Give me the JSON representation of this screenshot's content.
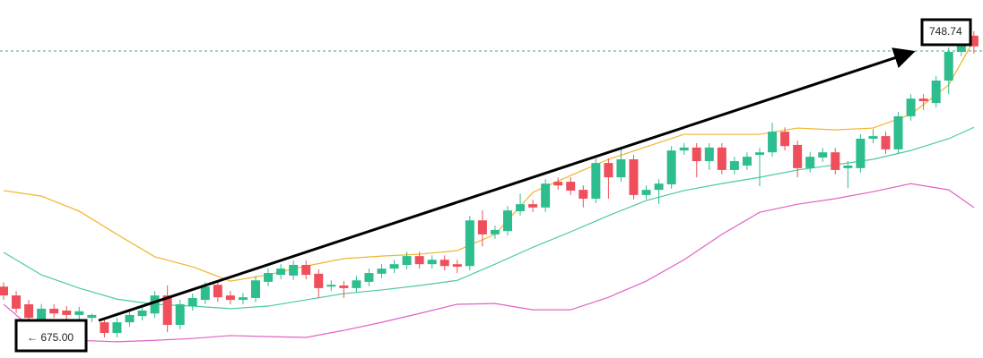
{
  "chart_data": {
    "type": "candlestick",
    "ylim": [
      665.3,
      762.6
    ],
    "up_color": "#2dbd8f",
    "down_color": "#ef4f5a",
    "candles": [
      [
        684.7,
        685.9,
        681.1,
        682.3
      ],
      [
        682.3,
        683.5,
        677.5,
        678.7
      ],
      [
        679.9,
        681.1,
        675.0,
        676.2
      ],
      [
        675.7,
        680.0,
        674.5,
        678.7
      ],
      [
        678.7,
        679.9,
        676.2,
        677.4
      ],
      [
        678.2,
        679.4,
        675.8,
        677.0
      ],
      [
        677.0,
        679.2,
        675.8,
        678.0
      ],
      [
        676.2,
        677.4,
        675.0,
        677.0
      ],
      [
        675.0,
        676.2,
        670.9,
        672.1
      ],
      [
        672.1,
        676.2,
        670.9,
        675.0
      ],
      [
        675.0,
        678.2,
        673.8,
        677.0
      ],
      [
        676.7,
        679.4,
        675.5,
        678.2
      ],
      [
        677.4,
        683.5,
        676.2,
        682.3
      ],
      [
        682.3,
        685.0,
        672.3,
        674.3
      ],
      [
        674.3,
        681.1,
        673.1,
        679.9
      ],
      [
        679.4,
        682.8,
        678.2,
        681.6
      ],
      [
        681.1,
        685.9,
        679.9,
        684.7
      ],
      [
        685.2,
        686.4,
        680.6,
        681.8
      ],
      [
        682.3,
        683.5,
        679.9,
        681.1
      ],
      [
        681.1,
        683.0,
        679.9,
        681.8
      ],
      [
        681.6,
        687.6,
        680.4,
        686.4
      ],
      [
        686.0,
        689.6,
        684.8,
        688.4
      ],
      [
        687.9,
        690.8,
        686.7,
        689.6
      ],
      [
        687.7,
        691.8,
        686.5,
        690.6
      ],
      [
        690.6,
        691.8,
        686.7,
        687.9
      ],
      [
        688.2,
        689.4,
        681.6,
        684.3
      ],
      [
        684.7,
        686.4,
        683.5,
        685.2
      ],
      [
        685.0,
        686.2,
        681.6,
        684.3
      ],
      [
        684.3,
        687.6,
        683.1,
        686.4
      ],
      [
        686.0,
        689.6,
        684.8,
        688.4
      ],
      [
        688.2,
        690.8,
        687.0,
        689.6
      ],
      [
        689.6,
        692.0,
        688.4,
        690.8
      ],
      [
        690.6,
        694.2,
        689.4,
        693.0
      ],
      [
        693.0,
        694.2,
        689.6,
        690.8
      ],
      [
        690.8,
        693.2,
        689.6,
        692.0
      ],
      [
        692.0,
        693.2,
        689.1,
        690.3
      ],
      [
        690.8,
        692.0,
        688.4,
        690.1
      ],
      [
        690.3,
        703.9,
        689.1,
        702.7
      ],
      [
        702.7,
        705.4,
        695.6,
        698.9
      ],
      [
        698.9,
        701.3,
        697.7,
        700.1
      ],
      [
        699.8,
        706.6,
        698.6,
        705.4
      ],
      [
        705.2,
        710.0,
        704.0,
        707.1
      ],
      [
        707.1,
        708.3,
        705.0,
        706.2
      ],
      [
        706.2,
        713.9,
        705.0,
        712.7
      ],
      [
        713.2,
        714.4,
        711.0,
        712.2
      ],
      [
        713.2,
        714.4,
        709.6,
        710.8
      ],
      [
        711.0,
        712.2,
        706.2,
        708.6
      ],
      [
        708.6,
        719.5,
        707.4,
        718.3
      ],
      [
        718.3,
        719.5,
        708.6,
        714.4
      ],
      [
        714.4,
        722.5,
        713.2,
        719.3
      ],
      [
        719.3,
        720.5,
        708.4,
        709.6
      ],
      [
        709.6,
        712.2,
        708.4,
        711.0
      ],
      [
        711.0,
        713.9,
        707.1,
        712.7
      ],
      [
        712.5,
        722.9,
        711.3,
        721.7
      ],
      [
        721.7,
        723.7,
        720.5,
        722.5
      ],
      [
        722.5,
        723.7,
        714.4,
        718.8
      ],
      [
        718.8,
        723.7,
        716.4,
        722.5
      ],
      [
        722.5,
        723.7,
        715.2,
        716.4
      ],
      [
        716.4,
        720.0,
        715.2,
        718.8
      ],
      [
        717.6,
        721.2,
        716.4,
        720.0
      ],
      [
        720.5,
        722.4,
        712.0,
        721.2
      ],
      [
        721.2,
        729.2,
        720.0,
        726.8
      ],
      [
        726.8,
        728.0,
        721.7,
        722.9
      ],
      [
        723.2,
        724.4,
        714.4,
        716.9
      ],
      [
        716.9,
        721.2,
        715.7,
        720.0
      ],
      [
        719.8,
        722.4,
        718.6,
        721.2
      ],
      [
        721.2,
        722.4,
        715.2,
        716.4
      ],
      [
        716.9,
        718.8,
        711.5,
        717.6
      ],
      [
        716.9,
        726.1,
        715.7,
        724.9
      ],
      [
        724.9,
        727.5,
        723.7,
        725.6
      ],
      [
        725.6,
        726.8,
        720.8,
        722.0
      ],
      [
        722.0,
        732.2,
        720.8,
        731.0
      ],
      [
        731.0,
        737.0,
        729.8,
        735.8
      ],
      [
        735.8,
        737.0,
        732.7,
        735.1
      ],
      [
        734.6,
        741.9,
        733.4,
        740.7
      ],
      [
        740.7,
        749.7,
        737.0,
        748.5
      ],
      [
        748.5,
        754.1,
        747.3,
        752.9
      ],
      [
        752.9,
        754.1,
        748.0,
        750.0
      ]
    ],
    "lines": [
      {
        "color": "#f0b429",
        "x": [
          0,
          3,
          6,
          9,
          12,
          15,
          18,
          21,
          24,
          27,
          30,
          33,
          36,
          39,
          42,
          45,
          48,
          51,
          54,
          57,
          60,
          63,
          66,
          69,
          72,
          75,
          77
        ],
        "values": [
          710.8,
          709.3,
          705.2,
          698.9,
          692.8,
          690.1,
          686.2,
          687.9,
          690.3,
          692.3,
          693.0,
          693.5,
          694.5,
          698.9,
          710.3,
          714.9,
          719.3,
          722.7,
          726.1,
          726.1,
          726.1,
          727.8,
          727.3,
          727.8,
          731.5,
          739.5,
          751.7
        ]
      },
      {
        "color": "#4cc9a4",
        "x": [
          0,
          3,
          6,
          9,
          12,
          15,
          18,
          21,
          24,
          27,
          30,
          33,
          36,
          39,
          42,
          45,
          48,
          51,
          54,
          57,
          60,
          63,
          66,
          69,
          72,
          75,
          77
        ],
        "values": [
          694.0,
          687.9,
          684.3,
          681.3,
          679.9,
          679.4,
          678.7,
          679.4,
          681.1,
          682.8,
          683.8,
          685.0,
          686.4,
          690.8,
          695.4,
          699.6,
          704.0,
          708.1,
          710.8,
          712.7,
          714.4,
          716.4,
          717.8,
          719.3,
          721.7,
          724.9,
          728.0
        ]
      },
      {
        "color": "#e062c4",
        "x": [
          0,
          3,
          6,
          9,
          12,
          15,
          18,
          21,
          24,
          27,
          30,
          33,
          36,
          39,
          42,
          45,
          48,
          51,
          54,
          57,
          60,
          63,
          66,
          69,
          72,
          75,
          77
        ],
        "values": [
          679.9,
          671.1,
          670.1,
          669.7,
          670.1,
          670.6,
          671.4,
          671.1,
          670.9,
          672.8,
          675.0,
          677.4,
          679.9,
          680.1,
          678.4,
          678.4,
          681.8,
          686.2,
          692.0,
          698.9,
          704.9,
          707.1,
          708.6,
          710.5,
          712.7,
          711.0,
          706.2
        ]
      }
    ],
    "annotations": [
      {
        "label": "748.74",
        "value": 748.74
      },
      {
        "label": "← 675.00",
        "value": 675
      }
    ]
  }
}
